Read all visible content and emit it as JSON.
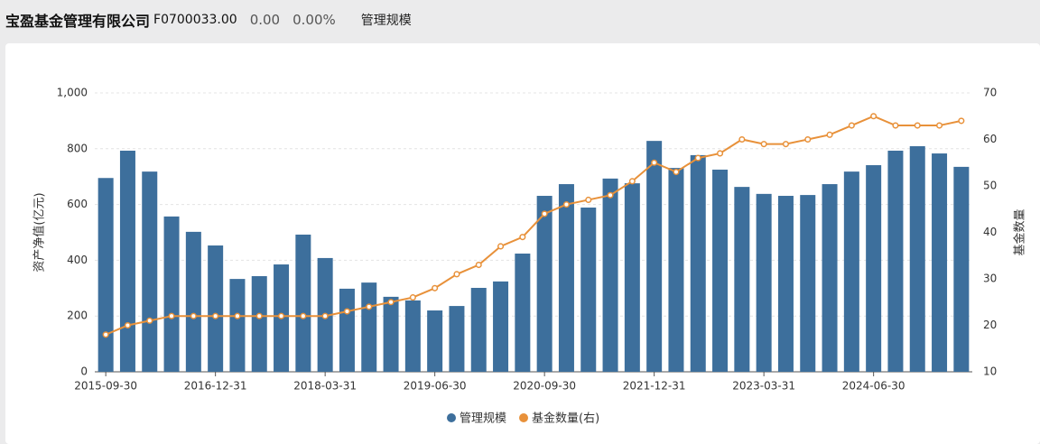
{
  "header": {
    "company": "宝盈基金管理有限公司",
    "code": "F0700033.00",
    "value": "0.00",
    "change": "0.00%",
    "tab": "管理规模"
  },
  "chart_data": {
    "type": "bar-line",
    "categories": [
      "2015-09-30",
      null,
      null,
      null,
      null,
      "2016-12-31",
      null,
      null,
      null,
      null,
      "2018-03-31",
      null,
      null,
      null,
      null,
      "2019-06-30",
      null,
      null,
      null,
      null,
      "2020-09-30",
      null,
      null,
      null,
      null,
      "2021-12-31",
      null,
      null,
      null,
      null,
      "2023-03-31",
      null,
      null,
      null,
      null,
      "2024-06-30",
      null,
      null,
      null,
      null
    ],
    "series": [
      {
        "name": "管理规模",
        "type": "bar",
        "axis": "y",
        "color": "#3d6f9c",
        "values": [
          695,
          793,
          718,
          557,
          502,
          453,
          333,
          343,
          385,
          492,
          408,
          298,
          320,
          269,
          256,
          220,
          236,
          301,
          324,
          424,
          631,
          673,
          589,
          693,
          676,
          828,
          731,
          777,
          725,
          663,
          638,
          631,
          634,
          673,
          718,
          741,
          793,
          809,
          783,
          735
        ]
      },
      {
        "name": "基金数量(右)",
        "type": "line",
        "axis": "y2",
        "color": "#e8913a",
        "values": [
          18,
          20,
          21,
          22,
          22,
          22,
          22,
          22,
          22,
          22,
          22,
          23,
          24,
          25,
          26,
          28,
          31,
          33,
          37,
          39,
          44,
          46,
          47,
          48,
          51,
          55,
          53,
          56,
          57,
          60,
          59,
          59,
          60,
          61,
          63,
          65,
          63,
          63,
          63,
          64
        ]
      }
    ],
    "ylabel": "资产净值(亿元)",
    "y2label": "基金数量",
    "ylim": [
      0,
      1000
    ],
    "yticks": [
      0,
      200,
      400,
      600,
      800,
      {
        "value": 1000,
        "label": "1,000"
      }
    ],
    "y2lim": [
      10,
      70
    ],
    "y2ticks": [
      10,
      20,
      30,
      40,
      50,
      60,
      70
    ],
    "grid": true,
    "legend": "bottom"
  }
}
